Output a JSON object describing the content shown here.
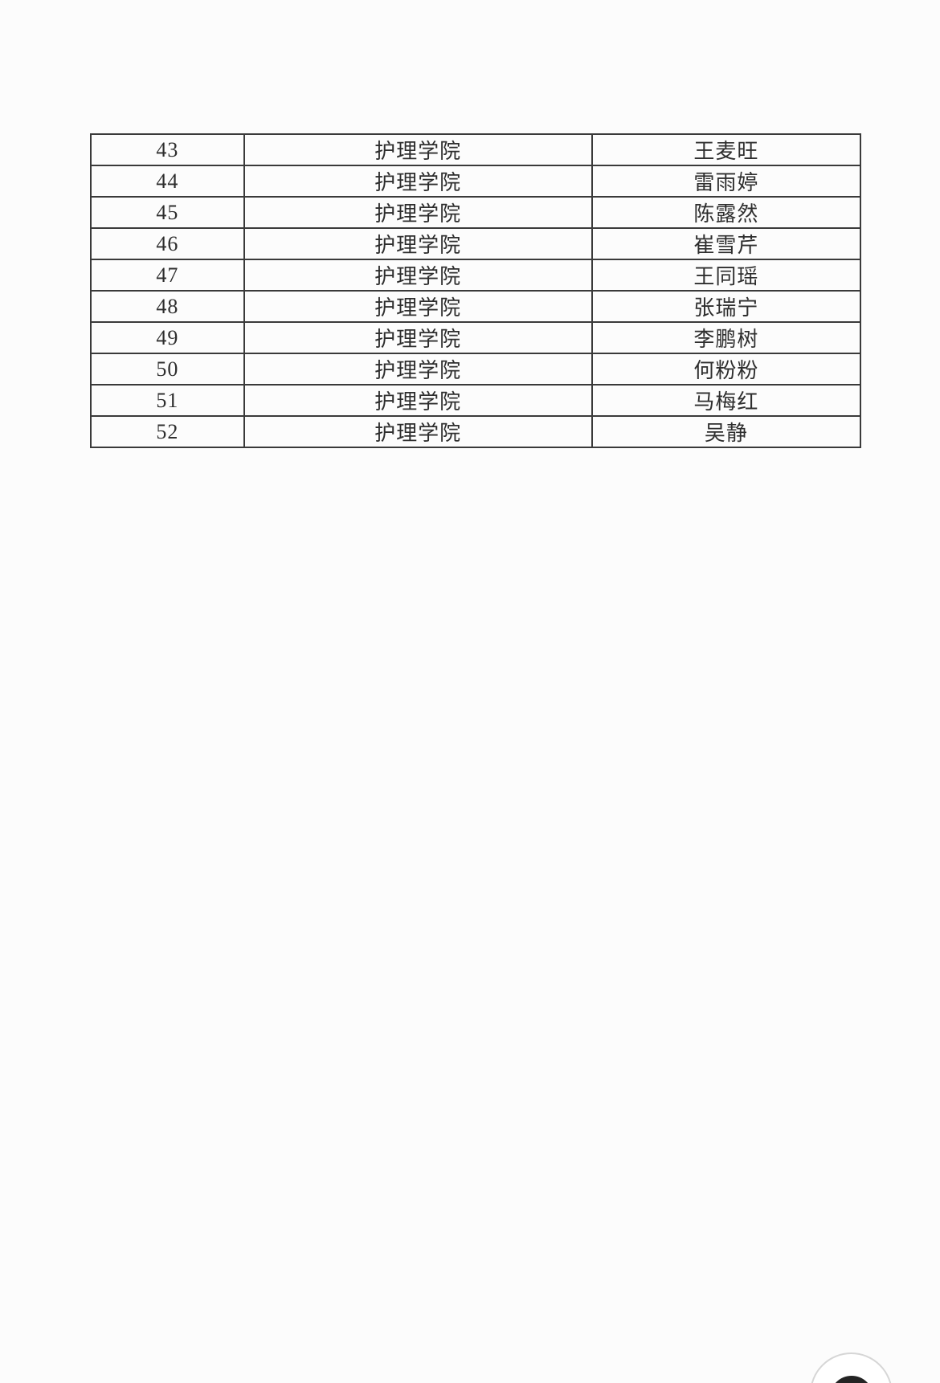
{
  "colors": {
    "page_bg": "#fcfcfc",
    "table_border": "#3a3a3a",
    "text": "#2e2e2e",
    "fab_ring": "#d6d6d6",
    "fab_glyph": "#242424"
  },
  "table": {
    "column_keys": [
      "index",
      "college",
      "name"
    ],
    "rows": [
      {
        "index": "43",
        "college": "护理学院",
        "name": "王麦旺"
      },
      {
        "index": "44",
        "college": "护理学院",
        "name": "雷雨婷"
      },
      {
        "index": "45",
        "college": "护理学院",
        "name": "陈露然"
      },
      {
        "index": "46",
        "college": "护理学院",
        "name": "崔雪芹"
      },
      {
        "index": "47",
        "college": "护理学院",
        "name": "王同瑶"
      },
      {
        "index": "48",
        "college": "护理学院",
        "name": "张瑞宁"
      },
      {
        "index": "49",
        "college": "护理学院",
        "name": "李鹏树"
      },
      {
        "index": "50",
        "college": "护理学院",
        "name": "何粉粉"
      },
      {
        "index": "51",
        "college": "护理学院",
        "name": "马梅红"
      },
      {
        "index": "52",
        "college": "护理学院",
        "name": "吴静"
      }
    ]
  },
  "fab": {
    "icon": "circular-arrow-icon"
  }
}
